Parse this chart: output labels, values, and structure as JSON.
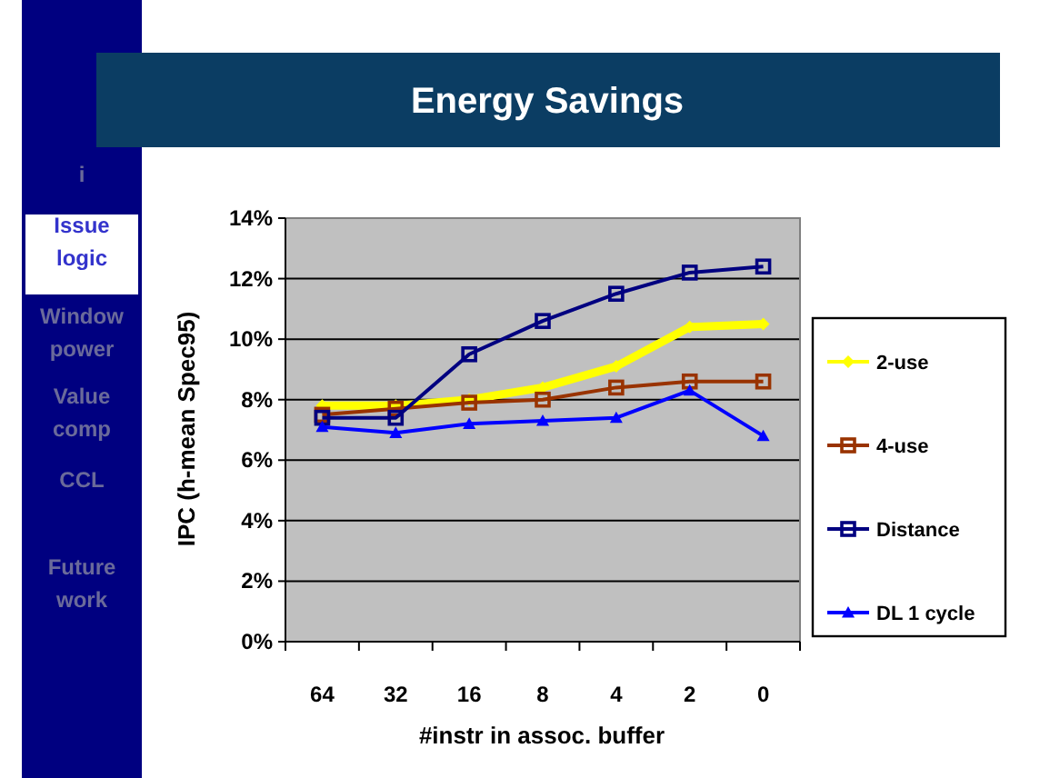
{
  "chart_data": {
    "type": "line",
    "title": "Energy Savings",
    "xlabel": "#instr in assoc. buffer",
    "ylabel": "IPC (h-mean Spec95)",
    "categories": [
      "64",
      "32",
      "16",
      "8",
      "4",
      "2",
      "0"
    ],
    "series": [
      {
        "name": "2-use",
        "color": "#ffff00",
        "marker": "diamond",
        "values": [
          7.8,
          7.8,
          8.0,
          8.4,
          9.1,
          10.4,
          10.5
        ]
      },
      {
        "name": "4-use",
        "color": "#993300",
        "marker": "square",
        "values": [
          7.5,
          7.7,
          7.9,
          8.0,
          8.4,
          8.6,
          8.6
        ]
      },
      {
        "name": "Distance",
        "color": "#000080",
        "marker": "square",
        "values": [
          7.4,
          7.4,
          9.5,
          10.6,
          11.5,
          12.2,
          12.4
        ]
      },
      {
        "name": "DL 1 cycle",
        "color": "#0000ff",
        "marker": "triangle",
        "values": [
          7.1,
          6.9,
          7.2,
          7.3,
          7.4,
          8.3,
          6.8
        ]
      }
    ],
    "ylim": [
      0,
      14
    ],
    "yticks": [
      {
        "value": 0,
        "label": "0%"
      },
      {
        "value": 2,
        "label": "2%"
      },
      {
        "value": 4,
        "label": "4%"
      },
      {
        "value": 6,
        "label": "6%"
      },
      {
        "value": 8,
        "label": "8%"
      },
      {
        "value": 10,
        "label": "10%"
      },
      {
        "value": 12,
        "label": "12%"
      },
      {
        "value": 14,
        "label": "14%"
      }
    ],
    "grid": "y",
    "legend": "right",
    "annotations": [
      "i",
      "Issue logic",
      "Window power",
      "Value comp",
      "CCL",
      "Future work"
    ]
  }
}
